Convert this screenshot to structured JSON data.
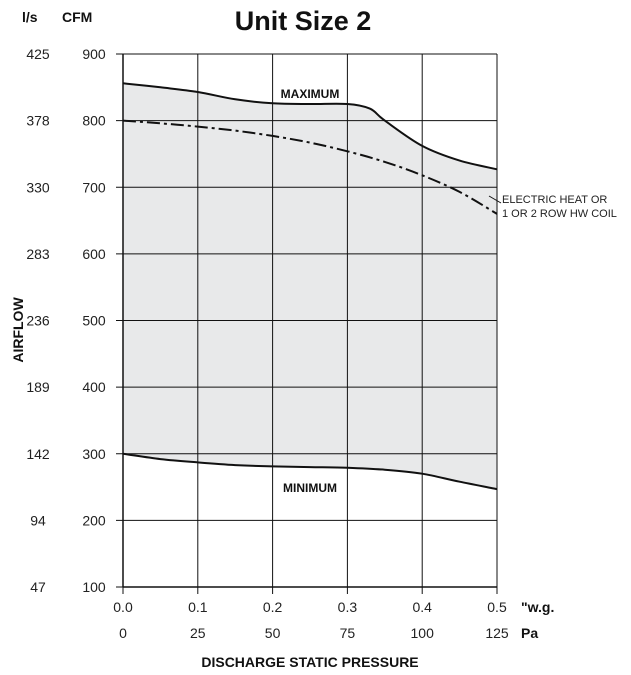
{
  "chart_data": {
    "type": "area",
    "title": "Unit Size 2",
    "ylabel": "AIRFLOW",
    "xlabel": "DISCHARGE STATIC PRESSURE",
    "y_unit_left": "l/s",
    "y_unit_right": "CFM",
    "x_unit_top": "\"w.g.",
    "x_unit_bottom": "Pa",
    "x_ticks_wg": [
      "0.0",
      "0.1",
      "0.2",
      "0.3",
      "0.4",
      "0.5"
    ],
    "x_ticks_pa": [
      "0",
      "25",
      "50",
      "75",
      "100",
      "125"
    ],
    "y_ticks_ls": [
      "47",
      "94",
      "142",
      "189",
      "236",
      "283",
      "330",
      "378",
      "425"
    ],
    "y_ticks_cfm": [
      "100",
      "200",
      "300",
      "400",
      "500",
      "600",
      "700",
      "800",
      "900"
    ],
    "xlim": [
      0,
      0.5
    ],
    "ylim": [
      100,
      900
    ],
    "grid": true,
    "series": [
      {
        "name": "MAXIMUM",
        "x": [
          0.0,
          0.05,
          0.1,
          0.15,
          0.2,
          0.25,
          0.3,
          0.33,
          0.35,
          0.4,
          0.45,
          0.5
        ],
        "values": [
          856,
          850,
          843,
          832,
          826,
          825,
          825,
          818,
          800,
          762,
          740,
          727
        ]
      },
      {
        "name": "ELECTRIC HEAT OR 1 OR 2 ROW HW COIL",
        "x": [
          0.0,
          0.05,
          0.1,
          0.15,
          0.2,
          0.25,
          0.3,
          0.35,
          0.4,
          0.45,
          0.5
        ],
        "values": [
          800,
          796,
          791,
          785,
          777,
          767,
          754,
          738,
          718,
          693,
          660
        ]
      },
      {
        "name": "MINIMUM",
        "x": [
          0.0,
          0.05,
          0.1,
          0.15,
          0.2,
          0.25,
          0.3,
          0.35,
          0.4,
          0.45,
          0.5
        ],
        "values": [
          300,
          292,
          287,
          283,
          281,
          280,
          279,
          276,
          270,
          258,
          247
        ]
      }
    ],
    "shaded_region": "between MINIMUM and MAXIMUM",
    "annotations": [
      "MAXIMUM",
      "MINIMUM",
      "ELECTRIC HEAT OR",
      "1 OR 2 ROW HW COIL"
    ]
  },
  "colors": {
    "fill": "#e8e9ea",
    "line": "#111111",
    "grid": "#111111"
  }
}
